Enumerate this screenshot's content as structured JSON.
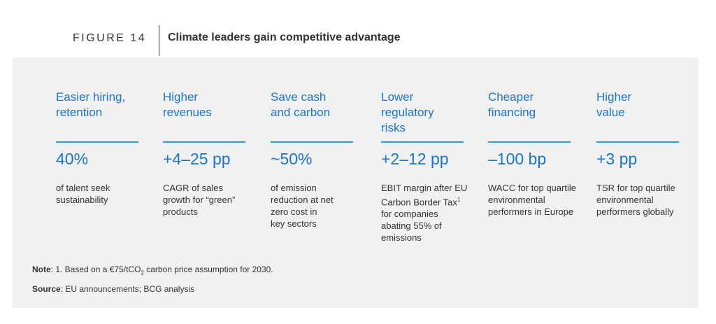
{
  "figure": {
    "label": "FIGURE 14",
    "title": "Climate leaders gain competitive advantage"
  },
  "columns": [
    {
      "title": "Easier hiring, retention",
      "value": "40%",
      "description": "of talent seek sustainability"
    },
    {
      "title": "Higher revenues",
      "value": "+4–25 pp",
      "description": "CAGR of sales growth for “green” products"
    },
    {
      "title": "Save cash and carbon",
      "value": "~50%",
      "description": "of emission reduction at net zero cost in key sectors"
    },
    {
      "title": "Lower regulatory risks",
      "value": "+2–12 pp",
      "description_before_sup": "EBIT margin after EU Carbon Border Tax",
      "description_sup": "1",
      "description_after_sup": " for companies abating 55% of emissions"
    },
    {
      "title": "Cheaper financing",
      "value": "–100 bp",
      "description": "WACC for top quartile environmental performers in Europe"
    },
    {
      "title": "Higher value",
      "value": "+3 pp",
      "description": "TSR for top quartile environmental performers globally"
    }
  ],
  "note": {
    "label": "Note",
    "text_before_sub": ": 1. Based on a €75/tCO",
    "sub": "2",
    "text_after_sub": " carbon price assumption for 2030."
  },
  "source": {
    "label": "Source",
    "text": ": EU announcements; BCG analysis"
  },
  "colors": {
    "accent": "#1a75cf",
    "rule": "#3595e6",
    "panel": "#f1f1f1",
    "text": "#333333"
  }
}
